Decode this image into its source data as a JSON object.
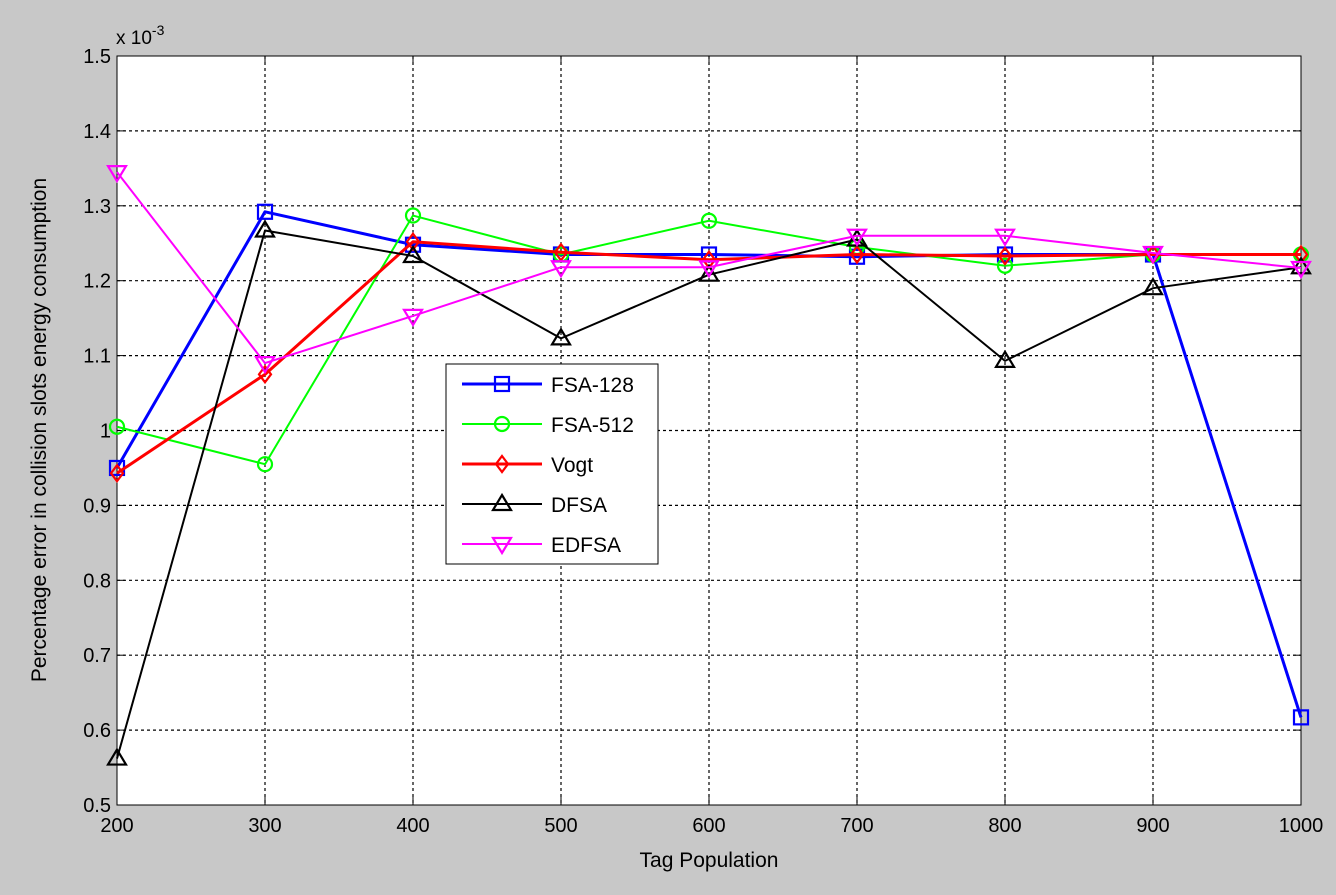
{
  "chart_data": {
    "type": "line",
    "xlabel": "Tag Population",
    "ylabel": "Percentage error in collision slots energy consumption",
    "exponent_prefix": "x 10",
    "exponent_power": "-3",
    "xlim": [
      200,
      1000
    ],
    "ylim": [
      0.5,
      1.5
    ],
    "grid": true,
    "legend_location": "center-left",
    "xticks": [
      200,
      300,
      400,
      500,
      600,
      700,
      800,
      900,
      1000
    ],
    "xtick_labels": [
      "200",
      "300",
      "400",
      "500",
      "600",
      "700",
      "800",
      "900",
      "1000"
    ],
    "yticks": [
      0.5,
      0.6,
      0.7,
      0.8,
      0.9,
      1.0,
      1.1,
      1.2,
      1.3,
      1.4,
      1.5
    ],
    "ytick_labels": [
      "0.5",
      "0.6",
      "0.7",
      "0.8",
      "0.9",
      "1",
      "1.1",
      "1.2",
      "1.3",
      "1.4",
      "1.5"
    ],
    "x": [
      200,
      300,
      400,
      500,
      600,
      700,
      800,
      900,
      1000
    ],
    "series": [
      {
        "name": "FSA-128",
        "color": "#0000ff",
        "marker": "square",
        "line_width": 3,
        "values": [
          0.95,
          1.292,
          1.248,
          1.235,
          1.235,
          1.232,
          1.235,
          1.235,
          0.617
        ]
      },
      {
        "name": "FSA-512",
        "color": "#00ff00",
        "marker": "circle",
        "line_width": 2,
        "values": [
          1.005,
          0.955,
          1.287,
          1.235,
          1.28,
          1.245,
          1.22,
          1.235,
          1.235
        ]
      },
      {
        "name": "Vogt",
        "color": "#ff0000",
        "marker": "diamond",
        "line_width": 3,
        "values": [
          0.943,
          1.075,
          1.252,
          1.238,
          1.228,
          1.235,
          1.233,
          1.235,
          1.235
        ]
      },
      {
        "name": "DFSA",
        "color": "#000000",
        "marker": "triangle-up",
        "line_width": 2,
        "values": [
          0.562,
          1.267,
          1.233,
          1.123,
          1.208,
          1.255,
          1.093,
          1.19,
          1.218
        ]
      },
      {
        "name": "EDFSA",
        "color": "#ff00ff",
        "marker": "triangle-down",
        "line_width": 2,
        "values": [
          1.345,
          1.09,
          1.153,
          1.218,
          1.218,
          1.26,
          1.26,
          1.237,
          1.217
        ]
      }
    ]
  }
}
